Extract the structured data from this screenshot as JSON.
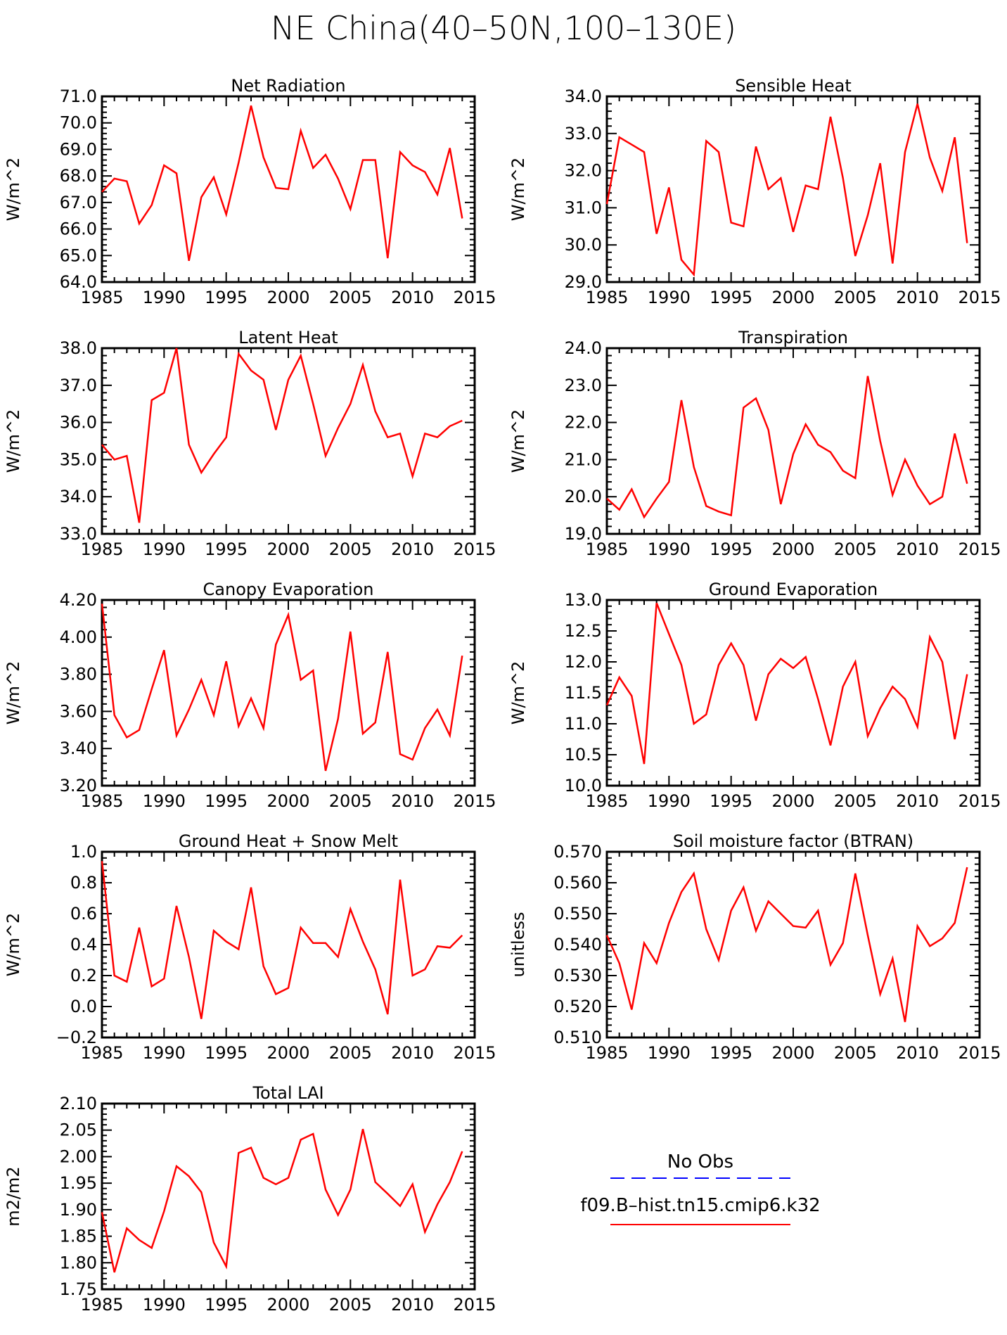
{
  "title": "NE China(40–50N,100–130E)",
  "legend": {
    "obs_label": "No Obs",
    "obs_color": "#0000ff",
    "model_label": "f09.B–hist.tn15.cmip6.k32",
    "model_color": "#ff0000"
  },
  "chart_data": [
    {
      "type": "line",
      "title": "Net Radiation",
      "ylabel": "W/m^2",
      "xlim": [
        1985,
        2015
      ],
      "ylim": [
        64.0,
        71.0
      ],
      "xticks": [
        "1985",
        "1990",
        "1995",
        "2000",
        "2005",
        "2010",
        "2015"
      ],
      "yticks": [
        "64.0",
        "65.0",
        "66.0",
        "67.0",
        "68.0",
        "69.0",
        "70.0",
        "71.0"
      ],
      "series": [
        {
          "name": "f09.B–hist.tn15.cmip6.k32",
          "x": [
            1985,
            1986,
            1987,
            1988,
            1989,
            1990,
            1991,
            1992,
            1993,
            1994,
            1995,
            1996,
            1997,
            1998,
            1999,
            2000,
            2001,
            2002,
            2003,
            2004,
            2005,
            2006,
            2007,
            2008,
            2009,
            2010,
            2011,
            2012,
            2013,
            2014
          ],
          "values": [
            67.4,
            67.9,
            67.8,
            66.2,
            66.9,
            68.4,
            68.1,
            64.8,
            67.2,
            67.95,
            66.55,
            68.5,
            70.65,
            68.7,
            67.55,
            67.5,
            69.7,
            68.3,
            68.8,
            67.9,
            66.75,
            68.6,
            68.6,
            64.9,
            68.9,
            68.4,
            68.15,
            67.3,
            69.05,
            66.4
          ]
        }
      ]
    },
    {
      "type": "line",
      "title": "Sensible Heat",
      "ylabel": "W/m^2",
      "xlim": [
        1985,
        2015
      ],
      "ylim": [
        29.0,
        34.0
      ],
      "xticks": [
        "1985",
        "1990",
        "1995",
        "2000",
        "2005",
        "2010",
        "2015"
      ],
      "yticks": [
        "29.0",
        "30.0",
        "31.0",
        "32.0",
        "33.0",
        "34.0"
      ],
      "series": [
        {
          "name": "f09.B–hist.tn15.cmip6.k32",
          "x": [
            1985,
            1986,
            1987,
            1988,
            1989,
            1990,
            1991,
            1992,
            1993,
            1994,
            1995,
            1996,
            1997,
            1998,
            1999,
            2000,
            2001,
            2002,
            2003,
            2004,
            2005,
            2006,
            2007,
            2008,
            2009,
            2010,
            2011,
            2012,
            2013,
            2014
          ],
          "values": [
            31.1,
            32.9,
            32.7,
            32.5,
            30.3,
            31.55,
            29.6,
            29.2,
            32.8,
            32.5,
            30.6,
            30.5,
            32.65,
            31.5,
            31.8,
            30.35,
            31.6,
            31.5,
            33.45,
            31.8,
            29.7,
            30.8,
            32.2,
            29.5,
            32.5,
            33.8,
            32.35,
            31.45,
            32.9,
            30.05
          ]
        }
      ]
    },
    {
      "type": "line",
      "title": "Latent Heat",
      "ylabel": "W/m^2",
      "xlim": [
        1985,
        2015
      ],
      "ylim": [
        33.0,
        38.0
      ],
      "xticks": [
        "1985",
        "1990",
        "1995",
        "2000",
        "2005",
        "2010",
        "2015"
      ],
      "yticks": [
        "33.0",
        "34.0",
        "35.0",
        "36.0",
        "37.0",
        "38.0"
      ],
      "series": [
        {
          "name": "f09.B–hist.tn15.cmip6.k32",
          "x": [
            1985,
            1986,
            1987,
            1988,
            1989,
            1990,
            1991,
            1992,
            1993,
            1994,
            1995,
            1996,
            1997,
            1998,
            1999,
            2000,
            2001,
            2002,
            2003,
            2004,
            2005,
            2006,
            2007,
            2008,
            2009,
            2010,
            2011,
            2012,
            2013,
            2014
          ],
          "values": [
            35.4,
            35.0,
            35.1,
            33.3,
            36.6,
            36.8,
            38.0,
            35.4,
            34.65,
            35.15,
            35.6,
            37.85,
            37.4,
            37.15,
            35.8,
            37.15,
            37.8,
            36.5,
            35.1,
            35.85,
            36.5,
            37.55,
            36.3,
            35.6,
            35.7,
            34.55,
            35.7,
            35.6,
            35.9,
            36.05
          ]
        }
      ]
    },
    {
      "type": "line",
      "title": "Transpiration",
      "ylabel": "W/m^2",
      "xlim": [
        1985,
        2015
      ],
      "ylim": [
        19.0,
        24.0
      ],
      "xticks": [
        "1985",
        "1990",
        "1995",
        "2000",
        "2005",
        "2010",
        "2015"
      ],
      "yticks": [
        "19.0",
        "20.0",
        "21.0",
        "22.0",
        "23.0",
        "24.0"
      ],
      "series": [
        {
          "name": "f09.B–hist.tn15.cmip6.k32",
          "x": [
            1985,
            1986,
            1987,
            1988,
            1989,
            1990,
            1991,
            1992,
            1993,
            1994,
            1995,
            1996,
            1997,
            1998,
            1999,
            2000,
            2001,
            2002,
            2003,
            2004,
            2005,
            2006,
            2007,
            2008,
            2009,
            2010,
            2011,
            2012,
            2013,
            2014
          ],
          "values": [
            19.95,
            19.65,
            20.2,
            19.45,
            19.95,
            20.4,
            22.6,
            20.8,
            19.75,
            19.6,
            19.5,
            22.4,
            22.65,
            21.8,
            19.8,
            21.15,
            21.95,
            21.4,
            21.2,
            20.7,
            20.5,
            23.25,
            21.5,
            20.05,
            21.0,
            20.3,
            19.8,
            20.0,
            21.7,
            20.35
          ]
        }
      ]
    },
    {
      "type": "line",
      "title": "Canopy Evaporation",
      "ylabel": "W/m^2",
      "xlim": [
        1985,
        2015
      ],
      "ylim": [
        3.2,
        4.2
      ],
      "xticks": [
        "1985",
        "1990",
        "1995",
        "2000",
        "2005",
        "2010",
        "2015"
      ],
      "yticks": [
        "3.20",
        "3.40",
        "3.60",
        "3.80",
        "4.00",
        "4.20"
      ],
      "series": [
        {
          "name": "f09.B–hist.tn15.cmip6.k32",
          "x": [
            1985,
            1986,
            1987,
            1988,
            1989,
            1990,
            1991,
            1992,
            1993,
            1994,
            1995,
            1996,
            1997,
            1998,
            1999,
            2000,
            2001,
            2002,
            2003,
            2004,
            2005,
            2006,
            2007,
            2008,
            2009,
            2010,
            2011,
            2012,
            2013,
            2014
          ],
          "values": [
            4.18,
            3.58,
            3.46,
            3.5,
            3.72,
            3.93,
            3.47,
            3.61,
            3.77,
            3.58,
            3.87,
            3.52,
            3.67,
            3.51,
            3.96,
            4.12,
            3.77,
            3.82,
            3.28,
            3.56,
            4.03,
            3.48,
            3.54,
            3.92,
            3.37,
            3.34,
            3.51,
            3.61,
            3.47,
            3.9
          ]
        }
      ]
    },
    {
      "type": "line",
      "title": "Ground Evaporation",
      "ylabel": "W/m^2",
      "xlim": [
        1985,
        2015
      ],
      "ylim": [
        10.0,
        13.0
      ],
      "xticks": [
        "1985",
        "1990",
        "1995",
        "2000",
        "2005",
        "2010",
        "2015"
      ],
      "yticks": [
        "10.0",
        "10.5",
        "11.0",
        "11.5",
        "12.0",
        "12.5",
        "13.0"
      ],
      "series": [
        {
          "name": "f09.B–hist.tn15.cmip6.k32",
          "x": [
            1985,
            1986,
            1987,
            1988,
            1989,
            1990,
            1991,
            1992,
            1993,
            1994,
            1995,
            1996,
            1997,
            1998,
            1999,
            2000,
            2001,
            2002,
            2003,
            2004,
            2005,
            2006,
            2007,
            2008,
            2009,
            2010,
            2011,
            2012,
            2013,
            2014
          ],
          "values": [
            11.3,
            11.75,
            11.45,
            10.35,
            12.95,
            12.45,
            11.95,
            11.0,
            11.15,
            11.95,
            12.3,
            11.95,
            11.05,
            11.8,
            12.05,
            11.9,
            12.08,
            11.4,
            10.65,
            11.6,
            12.0,
            10.8,
            11.25,
            11.6,
            11.4,
            10.95,
            12.4,
            12.0,
            10.75,
            11.8
          ]
        }
      ]
    },
    {
      "type": "line",
      "title": "Ground Heat + Snow Melt",
      "ylabel": "W/m^2",
      "xlim": [
        1985,
        2015
      ],
      "ylim": [
        -0.2,
        1.0
      ],
      "xticks": [
        "1985",
        "1990",
        "1995",
        "2000",
        "2005",
        "2010",
        "2015"
      ],
      "yticks": [
        "−0.2",
        "0.0",
        "0.2",
        "0.4",
        "0.6",
        "0.8",
        "1.0"
      ],
      "series": [
        {
          "name": "f09.B–hist.tn15.cmip6.k32",
          "x": [
            1985,
            1986,
            1987,
            1988,
            1989,
            1990,
            1991,
            1992,
            1993,
            1994,
            1995,
            1996,
            1997,
            1998,
            1999,
            2000,
            2001,
            2002,
            2003,
            2004,
            2005,
            2006,
            2007,
            2008,
            2009,
            2010,
            2011,
            2012,
            2013,
            2014
          ],
          "values": [
            0.94,
            0.2,
            0.16,
            0.51,
            0.13,
            0.18,
            0.65,
            0.32,
            -0.08,
            0.49,
            0.42,
            0.37,
            0.77,
            0.26,
            0.08,
            0.12,
            0.51,
            0.41,
            0.41,
            0.32,
            0.63,
            0.42,
            0.24,
            -0.05,
            0.82,
            0.2,
            0.24,
            0.39,
            0.38,
            0.46
          ]
        }
      ]
    },
    {
      "type": "line",
      "title": "Soil moisture factor (BTRAN)",
      "ylabel": "unitless",
      "xlim": [
        1985,
        2015
      ],
      "ylim": [
        0.51,
        0.57
      ],
      "xticks": [
        "1985",
        "1990",
        "1995",
        "2000",
        "2005",
        "2010",
        "2015"
      ],
      "yticks": [
        "0.510",
        "0.520",
        "0.530",
        "0.540",
        "0.550",
        "0.560",
        "0.570"
      ],
      "series": [
        {
          "name": "f09.B–hist.tn15.cmip6.k32",
          "x": [
            1985,
            1986,
            1987,
            1988,
            1989,
            1990,
            1991,
            1992,
            1993,
            1994,
            1995,
            1996,
            1997,
            1998,
            1999,
            2000,
            2001,
            2002,
            2003,
            2004,
            2005,
            2006,
            2007,
            2008,
            2009,
            2010,
            2011,
            2012,
            2013,
            2014
          ],
          "values": [
            0.543,
            0.534,
            0.519,
            0.5405,
            0.534,
            0.547,
            0.557,
            0.563,
            0.545,
            0.535,
            0.551,
            0.5585,
            0.5445,
            0.554,
            0.55,
            0.546,
            0.5455,
            0.551,
            0.5335,
            0.5405,
            0.563,
            0.543,
            0.524,
            0.5355,
            0.515,
            0.546,
            0.5395,
            0.542,
            0.547,
            0.565
          ]
        }
      ]
    },
    {
      "type": "line",
      "title": "Total LAI",
      "ylabel": "m2/m2",
      "xlim": [
        1985,
        2015
      ],
      "ylim": [
        1.75,
        2.1
      ],
      "xticks": [
        "1985",
        "1990",
        "1995",
        "2000",
        "2005",
        "2010",
        "2015"
      ],
      "yticks": [
        "1.75",
        "1.80",
        "1.85",
        "1.90",
        "1.95",
        "2.00",
        "2.05",
        "2.10"
      ],
      "series": [
        {
          "name": "f09.B–hist.tn15.cmip6.k32",
          "x": [
            1985,
            1986,
            1987,
            1988,
            1989,
            1990,
            1991,
            1992,
            1993,
            1994,
            1995,
            1996,
            1997,
            1998,
            1999,
            2000,
            2001,
            2002,
            2003,
            2004,
            2005,
            2006,
            2007,
            2008,
            2009,
            2010,
            2011,
            2012,
            2013,
            2014
          ],
          "values": [
            1.895,
            1.782,
            1.865,
            1.843,
            1.828,
            1.897,
            1.982,
            1.963,
            1.933,
            1.838,
            1.793,
            2.007,
            2.017,
            1.96,
            1.948,
            1.96,
            2.032,
            2.043,
            1.938,
            1.89,
            1.938,
            2.052,
            1.952,
            1.93,
            1.907,
            1.948,
            1.858,
            1.91,
            1.952,
            2.01
          ]
        }
      ]
    }
  ]
}
